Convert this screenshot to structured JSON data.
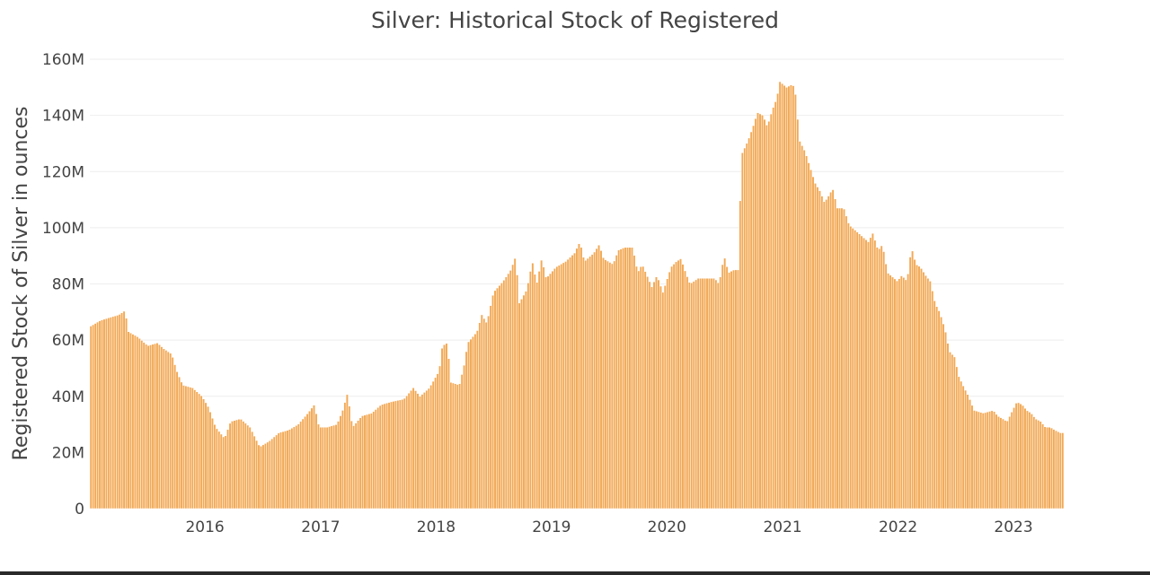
{
  "chart_data": {
    "type": "bar",
    "title": "Silver: Historical Stock of Registered",
    "xlabel": "",
    "ylabel": "Registered Stock of Silver in ounces",
    "x_range": [
      "2015-01-02",
      "2023-06-09"
    ],
    "ylim": [
      0,
      160000000
    ],
    "y_ticks": [
      0,
      20000000,
      40000000,
      60000000,
      80000000,
      100000000,
      120000000,
      140000000,
      160000000
    ],
    "y_tick_labels": [
      "0",
      "20M",
      "40M",
      "60M",
      "80M",
      "100M",
      "120M",
      "140M",
      "160M"
    ],
    "x_ticks": [
      "2016-01-01",
      "2017-01-01",
      "2018-01-01",
      "2019-01-01",
      "2020-01-01",
      "2021-01-01",
      "2022-01-01",
      "2023-01-01"
    ],
    "x_tick_labels": [
      "2016",
      "2017",
      "2018",
      "2019",
      "2020",
      "2021",
      "2022",
      "2023"
    ],
    "grid": true,
    "legend": "none",
    "bar_color": "#f2a956",
    "bar_edge_color": "#ffffff",
    "series": [
      {
        "frequency": "weekly",
        "points": [
          [
            "2015-01-02",
            65
          ],
          [
            "2015-02-01",
            67
          ],
          [
            "2015-03-01",
            68
          ],
          [
            "2015-04-01",
            69
          ],
          [
            "2015-04-20",
            70.5
          ],
          [
            "2015-05-01",
            63
          ],
          [
            "2015-06-01",
            61
          ],
          [
            "2015-07-01",
            58
          ],
          [
            "2015-08-01",
            59
          ],
          [
            "2015-08-20",
            57
          ],
          [
            "2015-09-15",
            55
          ],
          [
            "2015-10-01",
            49
          ],
          [
            "2015-10-20",
            44
          ],
          [
            "2015-11-20",
            43
          ],
          [
            "2015-12-20",
            40
          ],
          [
            "2016-01-10",
            36
          ],
          [
            "2016-02-01",
            29
          ],
          [
            "2016-03-01",
            25
          ],
          [
            "2016-03-20",
            31
          ],
          [
            "2016-04-20",
            32
          ],
          [
            "2016-05-20",
            29
          ],
          [
            "2016-06-20",
            22
          ],
          [
            "2016-07-20",
            24
          ],
          [
            "2016-08-20",
            27
          ],
          [
            "2016-09-20",
            28
          ],
          [
            "2016-10-20",
            30
          ],
          [
            "2016-11-20",
            34
          ],
          [
            "2016-12-10",
            37
          ],
          [
            "2016-12-25",
            29
          ],
          [
            "2017-01-20",
            29
          ],
          [
            "2017-02-20",
            30
          ],
          [
            "2017-03-10",
            35
          ],
          [
            "2017-03-25",
            41
          ],
          [
            "2017-04-10",
            29
          ],
          [
            "2017-05-10",
            33
          ],
          [
            "2017-06-10",
            34
          ],
          [
            "2017-07-10",
            37
          ],
          [
            "2017-08-10",
            38
          ],
          [
            "2017-09-20",
            39
          ],
          [
            "2017-10-20",
            43
          ],
          [
            "2017-11-10",
            40
          ],
          [
            "2017-12-10",
            43
          ],
          [
            "2018-01-10",
            49
          ],
          [
            "2018-01-20",
            58
          ],
          [
            "2018-02-05",
            59
          ],
          [
            "2018-02-15",
            45
          ],
          [
            "2018-03-15",
            44
          ],
          [
            "2018-04-01",
            52
          ],
          [
            "2018-04-10",
            59
          ],
          [
            "2018-05-10",
            63
          ],
          [
            "2018-05-25",
            69
          ],
          [
            "2018-06-10",
            66
          ],
          [
            "2018-07-01",
            77
          ],
          [
            "2018-08-01",
            81
          ],
          [
            "2018-08-25",
            85
          ],
          [
            "2018-09-10",
            90
          ],
          [
            "2018-09-20",
            73
          ],
          [
            "2018-10-15",
            78
          ],
          [
            "2018-11-01",
            88
          ],
          [
            "2018-11-15",
            80
          ],
          [
            "2018-12-01",
            89
          ],
          [
            "2018-12-15",
            82
          ],
          [
            "2019-01-15",
            86
          ],
          [
            "2019-02-15",
            88
          ],
          [
            "2019-03-15",
            91
          ],
          [
            "2019-04-01",
            95
          ],
          [
            "2019-04-15",
            88
          ],
          [
            "2019-05-15",
            91
          ],
          [
            "2019-06-01",
            94
          ],
          [
            "2019-06-15",
            89
          ],
          [
            "2019-07-15",
            87
          ],
          [
            "2019-08-01",
            92
          ],
          [
            "2019-08-20",
            93
          ],
          [
            "2019-09-15",
            93
          ],
          [
            "2019-10-01",
            84
          ],
          [
            "2019-10-15",
            87
          ],
          [
            "2019-11-15",
            79
          ],
          [
            "2019-12-01",
            83
          ],
          [
            "2019-12-20",
            77
          ],
          [
            "2020-01-15",
            86
          ],
          [
            "2020-02-01",
            88
          ],
          [
            "2020-02-15",
            89
          ],
          [
            "2020-03-01",
            84
          ],
          [
            "2020-03-15",
            80
          ],
          [
            "2020-04-10",
            82
          ],
          [
            "2020-05-01",
            82
          ],
          [
            "2020-06-01",
            82
          ],
          [
            "2020-06-15",
            80
          ],
          [
            "2020-07-01",
            90
          ],
          [
            "2020-07-15",
            84
          ],
          [
            "2020-08-01",
            85
          ],
          [
            "2020-08-15",
            85
          ],
          [
            "2020-08-25",
            126
          ],
          [
            "2020-09-15",
            131
          ],
          [
            "2020-10-01",
            136
          ],
          [
            "2020-10-15",
            141
          ],
          [
            "2020-11-01",
            140
          ],
          [
            "2020-11-15",
            136
          ],
          [
            "2020-12-01",
            142
          ],
          [
            "2020-12-15",
            146
          ],
          [
            "2020-12-25",
            152
          ],
          [
            "2021-01-15",
            150
          ],
          [
            "2021-02-01",
            151
          ],
          [
            "2021-02-10",
            150
          ],
          [
            "2021-02-25",
            131
          ],
          [
            "2021-03-15",
            127
          ],
          [
            "2021-04-01",
            121
          ],
          [
            "2021-04-15",
            116
          ],
          [
            "2021-05-01",
            113
          ],
          [
            "2021-05-15",
            109
          ],
          [
            "2021-06-01",
            112
          ],
          [
            "2021-06-10",
            114
          ],
          [
            "2021-06-25",
            107
          ],
          [
            "2021-07-15",
            107
          ],
          [
            "2021-08-01",
            101
          ],
          [
            "2021-09-01",
            98
          ],
          [
            "2021-10-01",
            95
          ],
          [
            "2021-10-15",
            98
          ],
          [
            "2021-11-01",
            92
          ],
          [
            "2021-11-15",
            94
          ],
          [
            "2021-12-01",
            84
          ],
          [
            "2022-01-01",
            81
          ],
          [
            "2022-01-15",
            83
          ],
          [
            "2022-02-01",
            81
          ],
          [
            "2022-02-15",
            93
          ],
          [
            "2022-03-01",
            87
          ],
          [
            "2022-03-15",
            86
          ],
          [
            "2022-04-01",
            83
          ],
          [
            "2022-04-15",
            81
          ],
          [
            "2022-05-01",
            73
          ],
          [
            "2022-05-15",
            70
          ],
          [
            "2022-06-01",
            64
          ],
          [
            "2022-06-15",
            56
          ],
          [
            "2022-07-01",
            54
          ],
          [
            "2022-07-15",
            47
          ],
          [
            "2022-08-01",
            43
          ],
          [
            "2022-08-15",
            40
          ],
          [
            "2022-09-01",
            35
          ],
          [
            "2022-10-01",
            34
          ],
          [
            "2022-11-01",
            35
          ],
          [
            "2022-11-15",
            33
          ],
          [
            "2022-12-01",
            32
          ],
          [
            "2022-12-15",
            31
          ],
          [
            "2023-01-15",
            38
          ],
          [
            "2023-02-01",
            37
          ],
          [
            "2023-02-15",
            35
          ],
          [
            "2023-03-01",
            34
          ],
          [
            "2023-03-15",
            32
          ],
          [
            "2023-04-01",
            31
          ],
          [
            "2023-04-15",
            29
          ],
          [
            "2023-05-01",
            29
          ],
          [
            "2023-05-15",
            28
          ],
          [
            "2023-06-01",
            27
          ],
          [
            "2023-06-09",
            27
          ]
        ],
        "point_value_multiplier": 1000000
      }
    ]
  }
}
